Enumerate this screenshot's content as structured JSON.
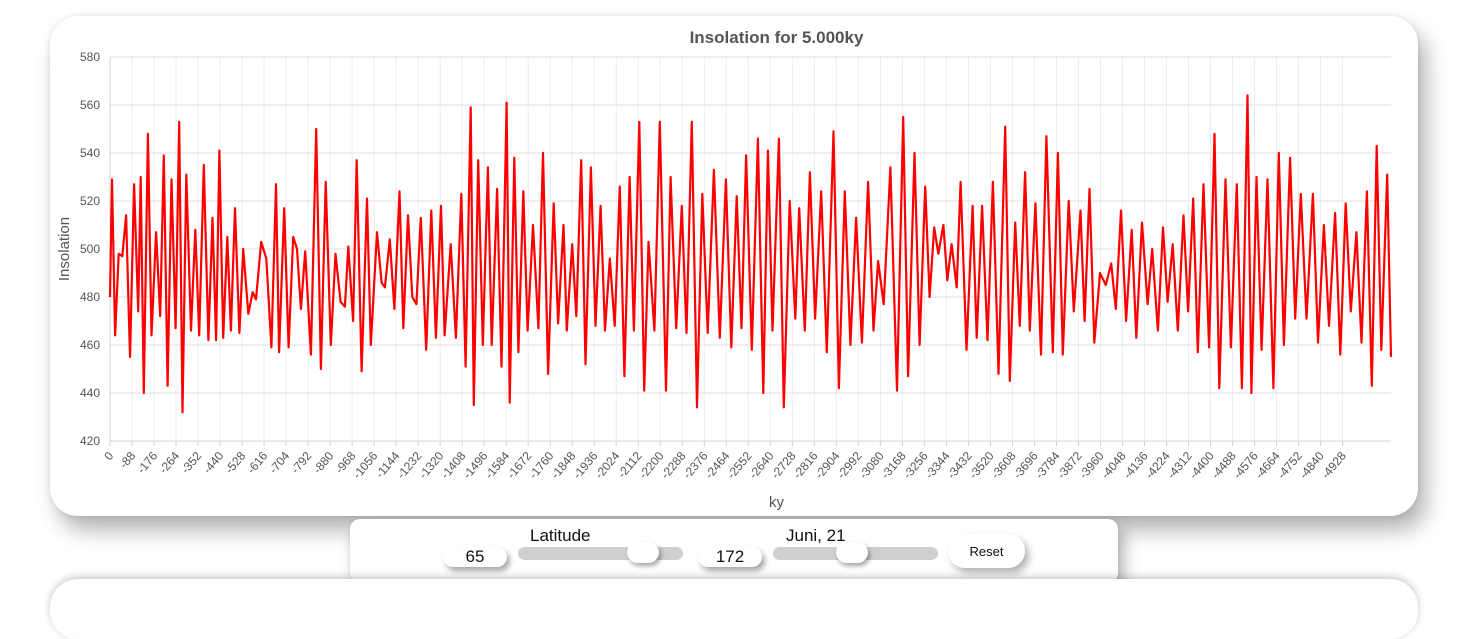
{
  "chart_data": {
    "type": "line",
    "title": "Insolation for 5.000ky",
    "xlabel": "ky",
    "ylabel": "Insolation",
    "ylim": [
      420,
      580
    ],
    "yticks": [
      420,
      440,
      460,
      480,
      500,
      520,
      540,
      560,
      580
    ],
    "xlim": [
      0,
      5000
    ],
    "xticks": [
      "0",
      "-88",
      "-176",
      "-264",
      "-352",
      "-440",
      "-528",
      "-616",
      "-704",
      "-792",
      "-880",
      "-968",
      "-1056",
      "-1144",
      "-1232",
      "-1320",
      "-1408",
      "-1496",
      "-1584",
      "-1672",
      "-1760",
      "-1848",
      "-1936",
      "-2024",
      "-2112",
      "-2200",
      "-2288",
      "-2376",
      "-2464",
      "-2552",
      "-2640",
      "-2728",
      "-2816",
      "-2904",
      "-2992",
      "-3080",
      "-3168",
      "-3256",
      "-3344",
      "-3432",
      "-3520",
      "-3608",
      "-3696",
      "-3784",
      "-3872",
      "-3960",
      "-4048",
      "-4136",
      "-4224",
      "-4312",
      "-4400",
      "-4488",
      "-4576",
      "-4664",
      "-4752",
      "-4840",
      "-4928"
    ],
    "grid": true,
    "series": [
      {
        "color": "#ff0000",
        "points": [
          [
            0,
            480
          ],
          [
            8,
            529
          ],
          [
            20,
            464
          ],
          [
            34,
            498
          ],
          [
            48,
            497
          ],
          [
            63,
            514
          ],
          [
            78,
            455
          ],
          [
            94,
            527
          ],
          [
            110,
            474
          ],
          [
            120,
            530
          ],
          [
            132,
            440
          ],
          [
            148,
            548
          ],
          [
            162,
            464
          ],
          [
            180,
            507
          ],
          [
            196,
            472
          ],
          [
            210,
            539
          ],
          [
            225,
            443
          ],
          [
            240,
            529
          ],
          [
            256,
            467
          ],
          [
            270,
            553
          ],
          [
            283,
            432
          ],
          [
            298,
            531
          ],
          [
            316,
            466
          ],
          [
            333,
            508
          ],
          [
            348,
            464
          ],
          [
            366,
            535
          ],
          [
            384,
            462
          ],
          [
            400,
            513
          ],
          [
            414,
            462
          ],
          [
            427,
            541
          ],
          [
            442,
            463
          ],
          [
            458,
            505
          ],
          [
            472,
            466
          ],
          [
            488,
            517
          ],
          [
            505,
            465
          ],
          [
            520,
            500
          ],
          [
            540,
            473
          ],
          [
            557,
            482
          ],
          [
            570,
            479
          ],
          [
            590,
            503
          ],
          [
            610,
            496
          ],
          [
            630,
            459
          ],
          [
            648,
            527
          ],
          [
            660,
            457
          ],
          [
            680,
            517
          ],
          [
            697,
            459
          ],
          [
            715,
            505
          ],
          [
            730,
            500
          ],
          [
            745,
            475
          ],
          [
            762,
            499
          ],
          [
            784,
            456
          ],
          [
            805,
            550
          ],
          [
            823,
            450
          ],
          [
            842,
            528
          ],
          [
            862,
            460
          ],
          [
            880,
            498
          ],
          [
            900,
            478
          ],
          [
            917,
            476
          ],
          [
            930,
            501
          ],
          [
            949,
            470
          ],
          [
            963,
            537
          ],
          [
            982,
            449
          ],
          [
            1003,
            521
          ],
          [
            1018,
            460
          ],
          [
            1042,
            507
          ],
          [
            1060,
            486
          ],
          [
            1073,
            484
          ],
          [
            1092,
            504
          ],
          [
            1110,
            475
          ],
          [
            1130,
            524
          ],
          [
            1145,
            467
          ],
          [
            1163,
            514
          ],
          [
            1180,
            480
          ],
          [
            1196,
            477
          ],
          [
            1213,
            513
          ],
          [
            1234,
            458
          ],
          [
            1254,
            516
          ],
          [
            1272,
            463
          ],
          [
            1292,
            518
          ],
          [
            1306,
            464
          ],
          [
            1330,
            502
          ],
          [
            1350,
            463
          ],
          [
            1371,
            523
          ],
          [
            1388,
            451
          ],
          [
            1408,
            559
          ],
          [
            1420,
            435
          ],
          [
            1437,
            537
          ],
          [
            1455,
            460
          ],
          [
            1475,
            534
          ],
          [
            1490,
            460
          ],
          [
            1511,
            525
          ],
          [
            1528,
            451
          ],
          [
            1548,
            561
          ],
          [
            1560,
            436
          ],
          [
            1578,
            538
          ],
          [
            1594,
            457
          ],
          [
            1613,
            524
          ],
          [
            1630,
            466
          ],
          [
            1651,
            510
          ],
          [
            1672,
            467
          ],
          [
            1690,
            540
          ],
          [
            1710,
            448
          ],
          [
            1732,
            519
          ],
          [
            1749,
            469
          ],
          [
            1770,
            510
          ],
          [
            1783,
            466
          ],
          [
            1804,
            502
          ],
          [
            1820,
            472
          ],
          [
            1839,
            537
          ],
          [
            1856,
            452
          ],
          [
            1877,
            534
          ],
          [
            1895,
            468
          ],
          [
            1915,
            518
          ],
          [
            1932,
            466
          ],
          [
            1951,
            496
          ],
          [
            1970,
            468
          ],
          [
            1990,
            526
          ],
          [
            2008,
            447
          ],
          [
            2028,
            530
          ],
          [
            2045,
            466
          ],
          [
            2066,
            553
          ],
          [
            2085,
            441
          ],
          [
            2102,
            503
          ],
          [
            2125,
            466
          ],
          [
            2146,
            553
          ],
          [
            2170,
            441
          ],
          [
            2188,
            530
          ],
          [
            2210,
            467
          ],
          [
            2232,
            518
          ],
          [
            2250,
            465
          ],
          [
            2271,
            553
          ],
          [
            2291,
            434
          ],
          [
            2312,
            523
          ],
          [
            2333,
            465
          ],
          [
            2357,
            533
          ],
          [
            2380,
            463
          ],
          [
            2404,
            529
          ],
          [
            2425,
            459
          ],
          [
            2446,
            522
          ],
          [
            2465,
            467
          ],
          [
            2483,
            539
          ],
          [
            2505,
            458
          ],
          [
            2529,
            546
          ],
          [
            2550,
            440
          ],
          [
            2568,
            541
          ],
          [
            2586,
            466
          ],
          [
            2611,
            546
          ],
          [
            2630,
            434
          ],
          [
            2653,
            520
          ],
          [
            2675,
            471
          ],
          [
            2690,
            517
          ],
          [
            2712,
            466
          ],
          [
            2732,
            532
          ],
          [
            2752,
            471
          ],
          [
            2776,
            524
          ],
          [
            2798,
            457
          ],
          [
            2824,
            549
          ],
          [
            2845,
            442
          ],
          [
            2868,
            524
          ],
          [
            2890,
            460
          ],
          [
            2912,
            513
          ],
          [
            2935,
            461
          ],
          [
            2959,
            528
          ],
          [
            2980,
            466
          ],
          [
            2998,
            495
          ],
          [
            3020,
            477
          ],
          [
            3046,
            534
          ],
          [
            3072,
            441
          ],
          [
            3096,
            555
          ],
          [
            3115,
            447
          ],
          [
            3140,
            540
          ],
          [
            3160,
            460
          ],
          [
            3182,
            526
          ],
          [
            3199,
            480
          ],
          [
            3217,
            509
          ],
          [
            3233,
            498
          ],
          [
            3253,
            510
          ],
          [
            3268,
            487
          ],
          [
            3285,
            502
          ],
          [
            3305,
            484
          ],
          [
            3320,
            528
          ],
          [
            3343,
            458
          ],
          [
            3367,
            518
          ],
          [
            3383,
            463
          ],
          [
            3404,
            518
          ],
          [
            3425,
            462
          ],
          [
            3446,
            528
          ],
          [
            3468,
            448
          ],
          [
            3494,
            551
          ],
          [
            3512,
            445
          ],
          [
            3533,
            511
          ],
          [
            3551,
            468
          ],
          [
            3572,
            532
          ],
          [
            3590,
            466
          ],
          [
            3612,
            519
          ],
          [
            3634,
            456
          ],
          [
            3655,
            547
          ],
          [
            3680,
            457
          ],
          [
            3700,
            540
          ],
          [
            3719,
            456
          ],
          [
            3742,
            520
          ],
          [
            3762,
            474
          ],
          [
            3788,
            516
          ],
          [
            3804,
            470
          ],
          [
            3823,
            525
          ],
          [
            3842,
            461
          ],
          [
            3864,
            490
          ],
          [
            3887,
            485
          ],
          [
            3908,
            494
          ],
          [
            3926,
            475
          ],
          [
            3946,
            516
          ],
          [
            3966,
            470
          ],
          [
            3988,
            508
          ],
          [
            4006,
            463
          ],
          [
            4028,
            511
          ],
          [
            4050,
            477
          ],
          [
            4068,
            500
          ],
          [
            4090,
            466
          ],
          [
            4110,
            509
          ],
          [
            4128,
            478
          ],
          [
            4148,
            502
          ],
          [
            4168,
            466
          ],
          [
            4190,
            514
          ],
          [
            4208,
            474
          ],
          [
            4228,
            521
          ],
          [
            4246,
            457
          ],
          [
            4268,
            527
          ],
          [
            4290,
            459
          ],
          [
            4311,
            548
          ],
          [
            4330,
            442
          ],
          [
            4354,
            529
          ],
          [
            4375,
            459
          ],
          [
            4398,
            527
          ],
          [
            4418,
            442
          ],
          [
            4440,
            564
          ],
          [
            4455,
            440
          ],
          [
            4475,
            530
          ],
          [
            4495,
            458
          ],
          [
            4518,
            529
          ],
          [
            4541,
            442
          ],
          [
            4562,
            540
          ],
          [
            4582,
            460
          ],
          [
            4606,
            538
          ],
          [
            4626,
            471
          ],
          [
            4648,
            523
          ],
          [
            4670,
            471
          ],
          [
            4695,
            523
          ],
          [
            4715,
            461
          ],
          [
            4738,
            510
          ],
          [
            4758,
            468
          ],
          [
            4782,
            515
          ],
          [
            4802,
            456
          ],
          [
            4823,
            519
          ],
          [
            4843,
            474
          ],
          [
            4865,
            507
          ],
          [
            4885,
            461
          ],
          [
            4906,
            524
          ],
          [
            4925,
            443
          ],
          [
            4944,
            543
          ],
          [
            4962,
            458
          ],
          [
            4985,
            531
          ],
          [
            5000,
            455
          ]
        ]
      }
    ]
  },
  "controls": {
    "latitude_label": "Latitude",
    "latitude_value": "65",
    "latitude_fraction": 0.82,
    "date_label": "Juni, 21",
    "day_value": "172",
    "day_fraction": 0.47,
    "reset_label": "Reset"
  }
}
